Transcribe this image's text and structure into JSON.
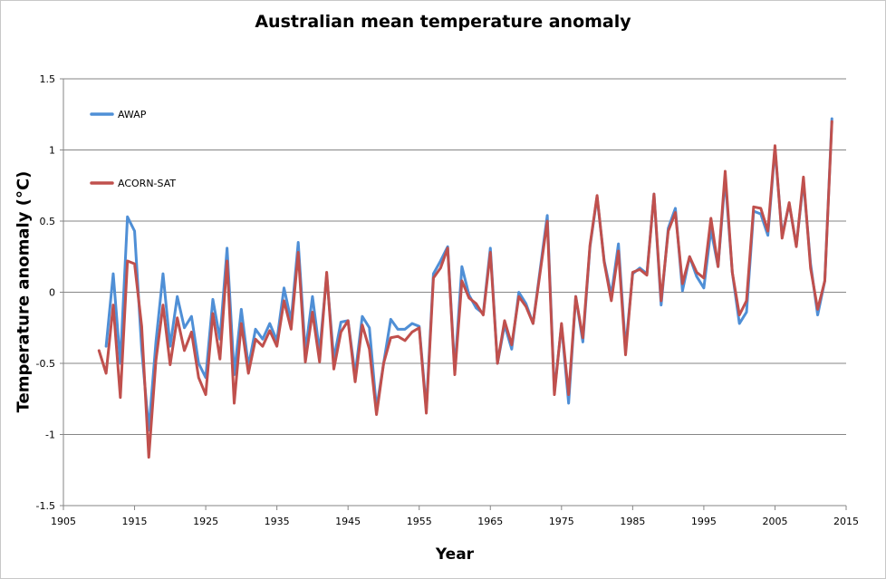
{
  "chart_data": {
    "type": "line",
    "title": "Australian mean temperature anomaly",
    "xlabel": "Year",
    "ylabel": "Temperature anomaly (°C)",
    "xlim": [
      1905,
      2015
    ],
    "ylim": [
      -1.5,
      1.5
    ],
    "x_ticks": [
      "1905",
      "1915",
      "1925",
      "1935",
      "1945",
      "1955",
      "1965",
      "1975",
      "1985",
      "1995",
      "2005",
      "2015"
    ],
    "y_ticks": [
      "-1.5",
      "-1",
      "-0.5",
      "0",
      "0.5",
      "1",
      "1.5"
    ],
    "grid": "horizontal",
    "legend_position": "top-left",
    "series": [
      {
        "name": "AWAP",
        "color": "#4f8fd6",
        "points": [
          [
            1911,
            -0.38
          ],
          [
            1912,
            0.13
          ],
          [
            1913,
            -0.5
          ],
          [
            1914,
            0.53
          ],
          [
            1915,
            0.43
          ],
          [
            1916,
            -0.4
          ],
          [
            1917,
            -0.97
          ],
          [
            1918,
            -0.35
          ],
          [
            1919,
            0.13
          ],
          [
            1920,
            -0.38
          ],
          [
            1921,
            -0.03
          ],
          [
            1922,
            -0.25
          ],
          [
            1923,
            -0.17
          ],
          [
            1924,
            -0.5
          ],
          [
            1925,
            -0.6
          ],
          [
            1926,
            -0.05
          ],
          [
            1927,
            -0.33
          ],
          [
            1928,
            0.31
          ],
          [
            1929,
            -0.58
          ],
          [
            1930,
            -0.12
          ],
          [
            1931,
            -0.52
          ],
          [
            1932,
            -0.26
          ],
          [
            1933,
            -0.33
          ],
          [
            1934,
            -0.22
          ],
          [
            1935,
            -0.34
          ],
          [
            1936,
            0.03
          ],
          [
            1937,
            -0.2
          ],
          [
            1938,
            0.35
          ],
          [
            1939,
            -0.42
          ],
          [
            1940,
            -0.03
          ],
          [
            1941,
            -0.42
          ],
          [
            1942,
            0.12
          ],
          [
            1943,
            -0.47
          ],
          [
            1944,
            -0.21
          ],
          [
            1945,
            -0.2
          ],
          [
            1946,
            -0.58
          ],
          [
            1947,
            -0.17
          ],
          [
            1948,
            -0.25
          ],
          [
            1949,
            -0.82
          ],
          [
            1950,
            -0.5
          ],
          [
            1951,
            -0.19
          ],
          [
            1952,
            -0.26
          ],
          [
            1953,
            -0.26
          ],
          [
            1954,
            -0.22
          ],
          [
            1955,
            -0.24
          ],
          [
            1956,
            -0.82
          ],
          [
            1957,
            0.13
          ],
          [
            1958,
            0.22
          ],
          [
            1959,
            0.32
          ],
          [
            1960,
            -0.55
          ],
          [
            1961,
            0.18
          ],
          [
            1962,
            -0.02
          ],
          [
            1963,
            -0.11
          ],
          [
            1964,
            -0.15
          ],
          [
            1965,
            0.31
          ],
          [
            1966,
            -0.5
          ],
          [
            1967,
            -0.23
          ],
          [
            1968,
            -0.4
          ],
          [
            1969,
            0.0
          ],
          [
            1970,
            -0.08
          ],
          [
            1971,
            -0.22
          ],
          [
            1972,
            0.16
          ],
          [
            1973,
            0.54
          ],
          [
            1974,
            -0.7
          ],
          [
            1975,
            -0.23
          ],
          [
            1976,
            -0.78
          ],
          [
            1977,
            -0.03
          ],
          [
            1978,
            -0.35
          ],
          [
            1979,
            0.32
          ],
          [
            1980,
            0.67
          ],
          [
            1981,
            0.22
          ],
          [
            1982,
            -0.02
          ],
          [
            1983,
            0.34
          ],
          [
            1984,
            -0.4
          ],
          [
            1985,
            0.13
          ],
          [
            1986,
            0.17
          ],
          [
            1987,
            0.13
          ],
          [
            1988,
            0.69
          ],
          [
            1989,
            -0.09
          ],
          [
            1990,
            0.45
          ],
          [
            1991,
            0.59
          ],
          [
            1992,
            0.01
          ],
          [
            1993,
            0.25
          ],
          [
            1994,
            0.11
          ],
          [
            1995,
            0.03
          ],
          [
            1996,
            0.44
          ],
          [
            1997,
            0.18
          ],
          [
            1998,
            0.8
          ],
          [
            1999,
            0.14
          ],
          [
            2000,
            -0.22
          ],
          [
            2001,
            -0.14
          ],
          [
            2002,
            0.57
          ],
          [
            2003,
            0.55
          ],
          [
            2004,
            0.4
          ],
          [
            2005,
            1.01
          ],
          [
            2006,
            0.4
          ],
          [
            2007,
            0.62
          ],
          [
            2008,
            0.33
          ],
          [
            2009,
            0.78
          ],
          [
            2010,
            0.2
          ],
          [
            2011,
            -0.16
          ],
          [
            2012,
            0.08
          ],
          [
            2013,
            1.22
          ]
        ]
      },
      {
        "name": "ACORN-SAT",
        "color": "#c0504d",
        "points": [
          [
            1910,
            -0.41
          ],
          [
            1911,
            -0.57
          ],
          [
            1912,
            -0.09
          ],
          [
            1913,
            -0.74
          ],
          [
            1914,
            0.22
          ],
          [
            1915,
            0.2
          ],
          [
            1916,
            -0.24
          ],
          [
            1917,
            -1.16
          ],
          [
            1918,
            -0.48
          ],
          [
            1919,
            -0.09
          ],
          [
            1920,
            -0.51
          ],
          [
            1921,
            -0.18
          ],
          [
            1922,
            -0.41
          ],
          [
            1923,
            -0.28
          ],
          [
            1924,
            -0.6
          ],
          [
            1925,
            -0.72
          ],
          [
            1926,
            -0.15
          ],
          [
            1927,
            -0.47
          ],
          [
            1928,
            0.22
          ],
          [
            1929,
            -0.78
          ],
          [
            1930,
            -0.22
          ],
          [
            1931,
            -0.57
          ],
          [
            1932,
            -0.33
          ],
          [
            1933,
            -0.38
          ],
          [
            1934,
            -0.27
          ],
          [
            1935,
            -0.38
          ],
          [
            1936,
            -0.06
          ],
          [
            1937,
            -0.26
          ],
          [
            1938,
            0.28
          ],
          [
            1939,
            -0.49
          ],
          [
            1940,
            -0.14
          ],
          [
            1941,
            -0.49
          ],
          [
            1942,
            0.14
          ],
          [
            1943,
            -0.54
          ],
          [
            1944,
            -0.28
          ],
          [
            1945,
            -0.2
          ],
          [
            1946,
            -0.63
          ],
          [
            1947,
            -0.23
          ],
          [
            1948,
            -0.4
          ],
          [
            1949,
            -0.86
          ],
          [
            1950,
            -0.5
          ],
          [
            1951,
            -0.32
          ],
          [
            1952,
            -0.31
          ],
          [
            1953,
            -0.34
          ],
          [
            1954,
            -0.28
          ],
          [
            1955,
            -0.25
          ],
          [
            1956,
            -0.85
          ],
          [
            1957,
            0.1
          ],
          [
            1958,
            0.17
          ],
          [
            1959,
            0.31
          ],
          [
            1960,
            -0.58
          ],
          [
            1961,
            0.08
          ],
          [
            1962,
            -0.04
          ],
          [
            1963,
            -0.08
          ],
          [
            1964,
            -0.16
          ],
          [
            1965,
            0.28
          ],
          [
            1966,
            -0.5
          ],
          [
            1967,
            -0.2
          ],
          [
            1968,
            -0.37
          ],
          [
            1969,
            -0.03
          ],
          [
            1970,
            -0.1
          ],
          [
            1971,
            -0.22
          ],
          [
            1972,
            0.14
          ],
          [
            1973,
            0.5
          ],
          [
            1974,
            -0.72
          ],
          [
            1975,
            -0.22
          ],
          [
            1976,
            -0.72
          ],
          [
            1977,
            -0.03
          ],
          [
            1978,
            -0.32
          ],
          [
            1979,
            0.33
          ],
          [
            1980,
            0.68
          ],
          [
            1981,
            0.21
          ],
          [
            1982,
            -0.06
          ],
          [
            1983,
            0.29
          ],
          [
            1984,
            -0.44
          ],
          [
            1985,
            0.14
          ],
          [
            1986,
            0.16
          ],
          [
            1987,
            0.12
          ],
          [
            1988,
            0.69
          ],
          [
            1989,
            -0.06
          ],
          [
            1990,
            0.43
          ],
          [
            1991,
            0.56
          ],
          [
            1992,
            0.06
          ],
          [
            1993,
            0.25
          ],
          [
            1994,
            0.14
          ],
          [
            1995,
            0.1
          ],
          [
            1996,
            0.52
          ],
          [
            1997,
            0.18
          ],
          [
            1998,
            0.85
          ],
          [
            1999,
            0.14
          ],
          [
            2000,
            -0.16
          ],
          [
            2001,
            -0.06
          ],
          [
            2002,
            0.6
          ],
          [
            2003,
            0.59
          ],
          [
            2004,
            0.43
          ],
          [
            2005,
            1.03
          ],
          [
            2006,
            0.38
          ],
          [
            2007,
            0.63
          ],
          [
            2008,
            0.32
          ],
          [
            2009,
            0.81
          ],
          [
            2010,
            0.17
          ],
          [
            2011,
            -0.12
          ],
          [
            2012,
            0.08
          ],
          [
            2013,
            1.2
          ]
        ]
      }
    ]
  }
}
